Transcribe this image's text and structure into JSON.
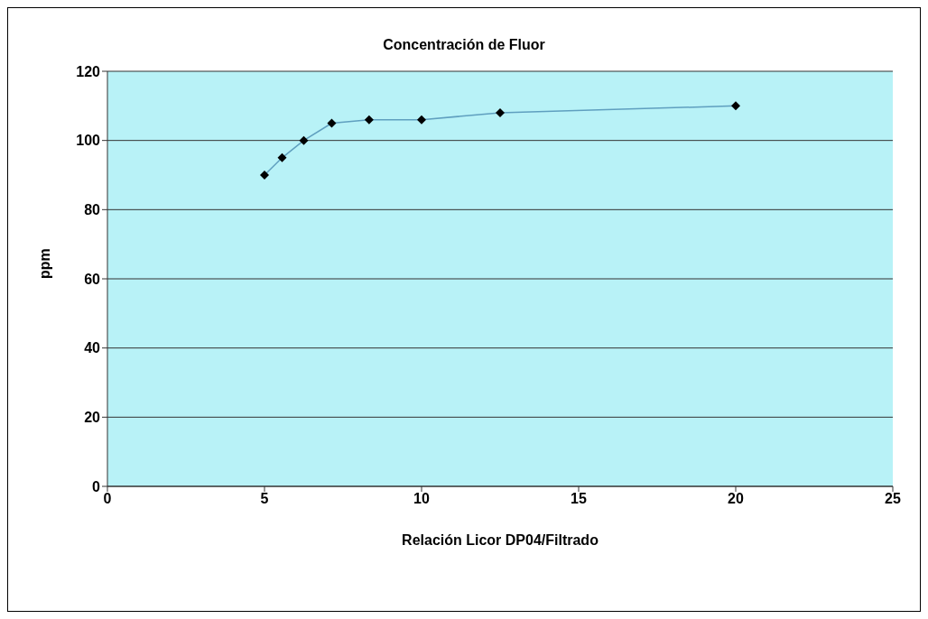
{
  "chart_data": {
    "type": "line",
    "title": "Concentración de Fluor",
    "xlabel": "Relación Licor DP04/Filtrado",
    "ylabel": "ppm",
    "x": [
      5,
      5.56,
      6.25,
      7.14,
      8.33,
      10,
      12.5,
      20
    ],
    "series": [
      {
        "color": "#5f9fbf",
        "values": [
          90,
          95,
          100,
          105,
          106,
          106,
          108,
          110
        ]
      }
    ],
    "xlim": [
      0,
      25
    ],
    "xticks": [
      0,
      5,
      10,
      15,
      20,
      25
    ],
    "ylim": [
      0,
      120
    ],
    "yticks": [
      0,
      20,
      40,
      60,
      80,
      100,
      120
    ],
    "grid": "y",
    "marker": "diamond",
    "line_style": "solid",
    "legend": false
  }
}
